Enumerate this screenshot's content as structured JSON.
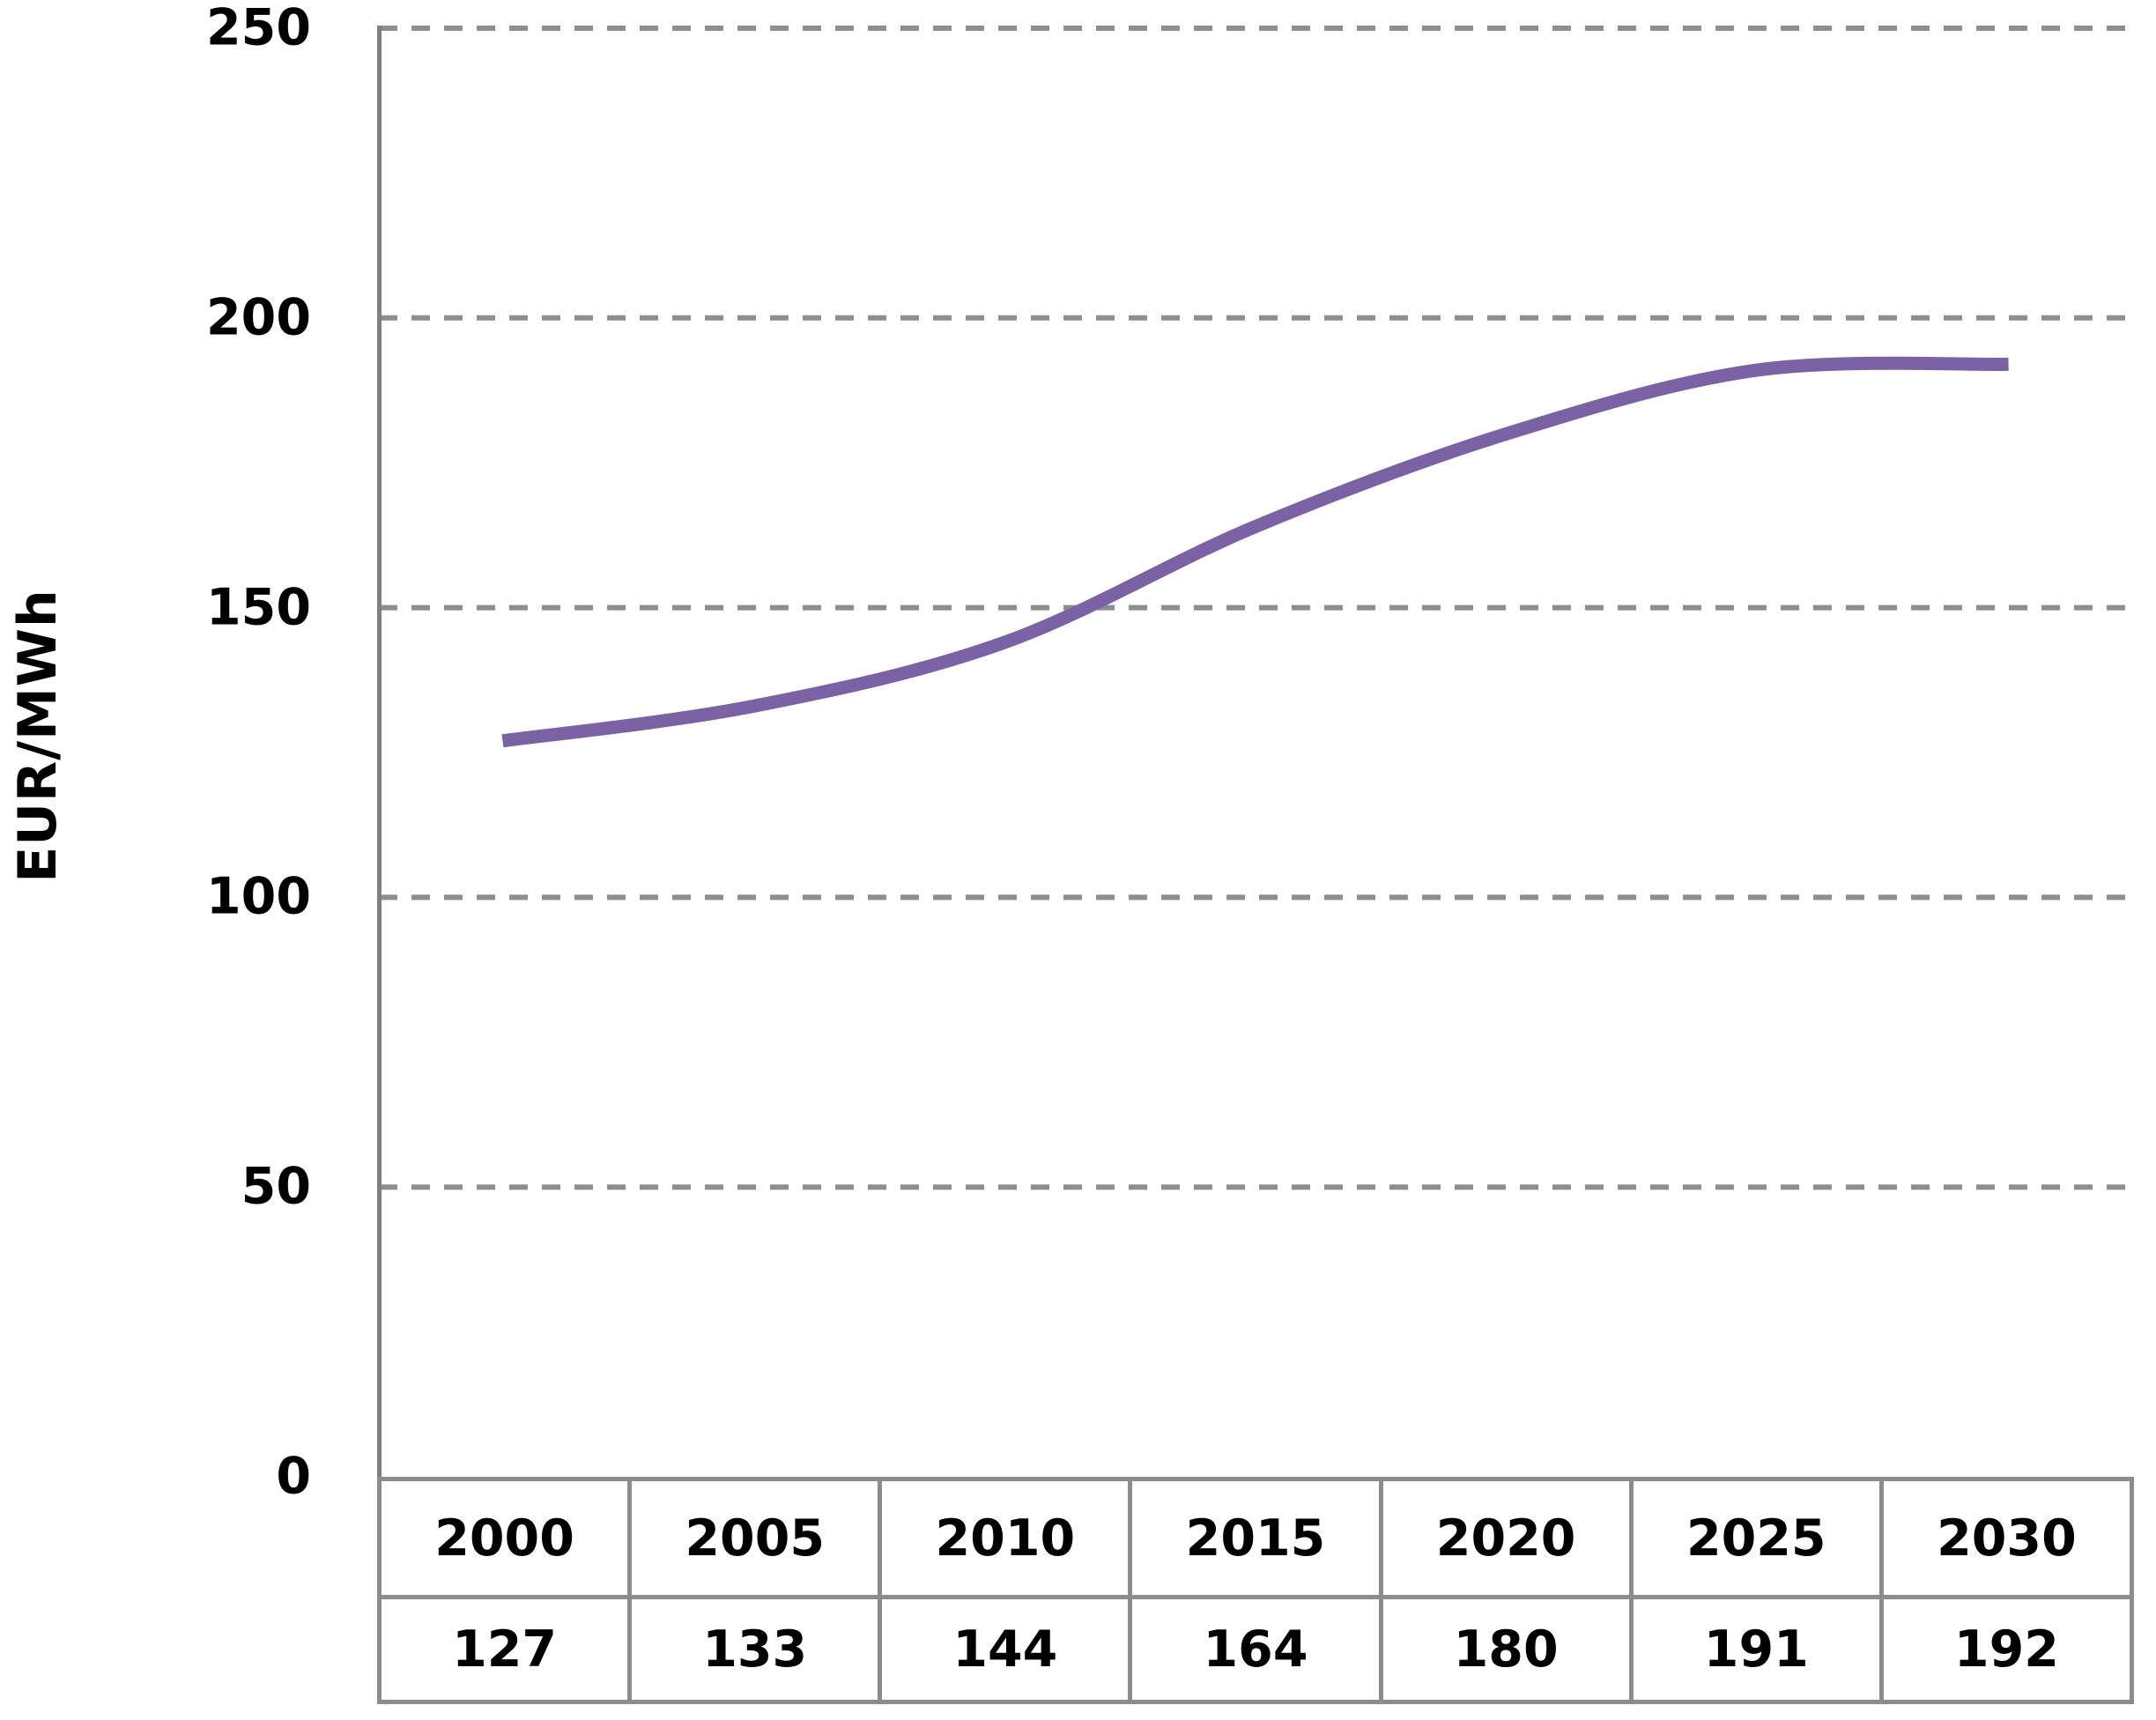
{
  "chart_data": {
    "type": "line",
    "title": "",
    "xlabel": "",
    "ylabel": "EUR/MWh",
    "categories": [
      "2000",
      "2005",
      "2010",
      "2015",
      "2020",
      "2025",
      "2030"
    ],
    "values": [
      127,
      133,
      144,
      164,
      180,
      191,
      192
    ],
    "ylim": [
      0,
      250
    ],
    "yticks": [
      0,
      50,
      100,
      150,
      200,
      250
    ],
    "grid": "horizontal-dashed",
    "legend_position": "none",
    "smooth_line": true,
    "data_table_below_axis": true,
    "colors": {
      "line": "#7A62A4",
      "gridline": "#8E8E8E",
      "axis": "#7F7F7F",
      "table_border": "#8C8C8C",
      "text": "#000000",
      "background": "#FFFFFF"
    }
  }
}
